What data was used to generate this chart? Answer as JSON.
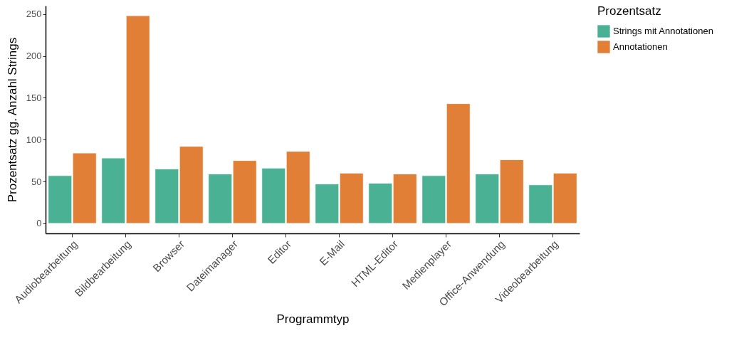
{
  "chart_data": {
    "type": "bar",
    "xlabel": "Programmtyp",
    "ylabel": "Prozentsatz gg. Anzahl Strings",
    "legend_title": "Prozentsatz",
    "categories": [
      "Audiobearbeitung",
      "Bildbearbeitung",
      "Browser",
      "Dateimanager",
      "Editor",
      "E-Mail",
      "HTML-Editor",
      "Medienplayer",
      "Office-Anwendung",
      "Videobearbeitung"
    ],
    "series": [
      {
        "name": "Strings mit Annotationen",
        "color": "#4ab194",
        "values": [
          57,
          78,
          65,
          59,
          66,
          47,
          48,
          57,
          59,
          46
        ]
      },
      {
        "name": "Annotationen",
        "color": "#e07f35",
        "values": [
          84,
          248,
          92,
          75,
          86,
          60,
          59,
          143,
          76,
          60
        ]
      }
    ],
    "ylim": [
      -12,
      260
    ],
    "yticks": [
      0,
      50,
      100,
      150,
      200,
      250
    ],
    "grid": false,
    "legend": "right"
  }
}
